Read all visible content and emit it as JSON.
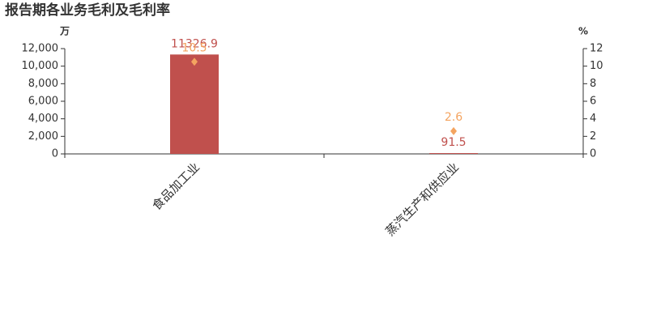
{
  "chart_data": {
    "type": "bar",
    "title": "报告期各业务毛利及毛利率",
    "y_unit": "万",
    "y2_unit": "%",
    "categories": [
      "食品加工业",
      "蒸汽生产和供应业"
    ],
    "series": [
      {
        "type": "bar",
        "color": "#c0504d",
        "values": [
          11326.9,
          91.5
        ]
      },
      {
        "type": "scatter",
        "marker": "diamond",
        "color": "#f4a460",
        "axis": "y2",
        "values": [
          10.5,
          2.6
        ]
      }
    ],
    "ylim": [
      0,
      12000
    ],
    "yticks": [
      0,
      {
        "value": 2000,
        "label": "2,000"
      },
      {
        "value": 4000,
        "label": "4,000"
      },
      {
        "value": 6000,
        "label": "6,000"
      },
      {
        "value": 8000,
        "label": "8,000"
      },
      {
        "value": 10000,
        "label": "10,000"
      },
      {
        "value": 12000,
        "label": "12,000"
      }
    ],
    "y2lim": [
      0,
      12
    ],
    "y2ticks": [
      0,
      2,
      4,
      6,
      8,
      10,
      12
    ],
    "grid": false
  }
}
